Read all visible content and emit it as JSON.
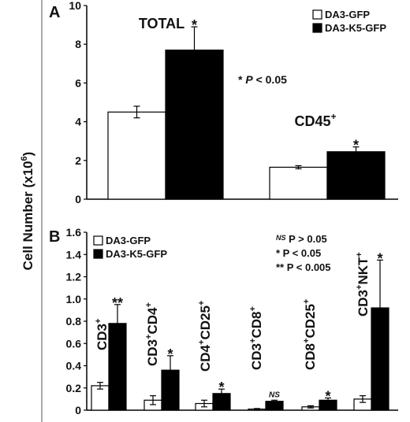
{
  "ylabel": "Cell Number (x10",
  "ylabel_sup": "6",
  "ylabel_close": ")",
  "chart_data": [
    {
      "panel": "A",
      "type": "bar",
      "ylim": [
        0,
        10
      ],
      "yticks": [
        "0",
        "2",
        "4",
        "6",
        "8",
        "10"
      ],
      "legend": {
        "placement": "top-right",
        "entries": [
          "DA3-GFP",
          "DA3-K5-GFP"
        ]
      },
      "annotation": {
        "star": "* ",
        "p": "P",
        "rest": " < 0.05"
      },
      "categories": [
        {
          "label": "TOTAL",
          "sup": "",
          "values": [
            4.5,
            7.7
          ],
          "errors": [
            0.3,
            1.2
          ],
          "sig": "*"
        },
        {
          "label": "CD45",
          "sup": "+",
          "values": [
            1.65,
            2.45
          ],
          "errors": [
            0.08,
            0.25
          ],
          "sig": "*"
        }
      ],
      "series": [
        {
          "name": "DA3-GFP",
          "color": "#ffffff"
        },
        {
          "name": "DA3-K5-GFP",
          "color": "#000000"
        }
      ]
    },
    {
      "panel": "B",
      "type": "bar",
      "ylim": [
        0,
        1.6
      ],
      "yticks": [
        "0",
        "0.2",
        "0.4",
        "0.6",
        "0.8",
        "1.0",
        "1.2",
        "1.4",
        "1.6"
      ],
      "legend": {
        "placement": "top-left",
        "entries": [
          "DA3-GFP",
          "DA3-K5-GFP"
        ]
      },
      "pvalues": [
        {
          "mark": "NS",
          "text": " P > 0.05"
        },
        {
          "mark": "*",
          "text": "  P < 0.05"
        },
        {
          "mark": "**",
          "text": " P < 0.005"
        }
      ],
      "categories": [
        {
          "parts": [
            [
              "CD3",
              "+"
            ]
          ],
          "values": [
            0.22,
            0.78
          ],
          "errors": [
            0.03,
            0.17
          ],
          "sig": "**"
        },
        {
          "parts": [
            [
              "CD3",
              "+"
            ],
            [
              "CD4",
              "+"
            ]
          ],
          "values": [
            0.09,
            0.36
          ],
          "errors": [
            0.04,
            0.13
          ],
          "sig": "*"
        },
        {
          "parts": [
            [
              "CD4",
              "+"
            ],
            [
              "CD25",
              "+"
            ]
          ],
          "values": [
            0.06,
            0.15
          ],
          "errors": [
            0.03,
            0.04
          ],
          "sig": "*"
        },
        {
          "parts": [
            [
              "CD3",
              "+"
            ],
            [
              "CD8",
              "+"
            ]
          ],
          "values": [
            0.01,
            0.08
          ],
          "errors": [
            0.005,
            0.01
          ],
          "sig": "NS"
        },
        {
          "parts": [
            [
              "CD8",
              "+"
            ],
            [
              "CD25",
              "+"
            ]
          ],
          "values": [
            0.03,
            0.09
          ],
          "errors": [
            0.01,
            0.02
          ],
          "sig": "*"
        },
        {
          "parts": [
            [
              "CD3",
              "+"
            ],
            [
              "NKT",
              "+"
            ]
          ],
          "values": [
            0.1,
            0.92
          ],
          "errors": [
            0.03,
            0.43
          ],
          "sig": "*"
        }
      ],
      "series": [
        {
          "name": "DA3-GFP",
          "color": "#ffffff"
        },
        {
          "name": "DA3-K5-GFP",
          "color": "#000000"
        }
      ]
    }
  ]
}
